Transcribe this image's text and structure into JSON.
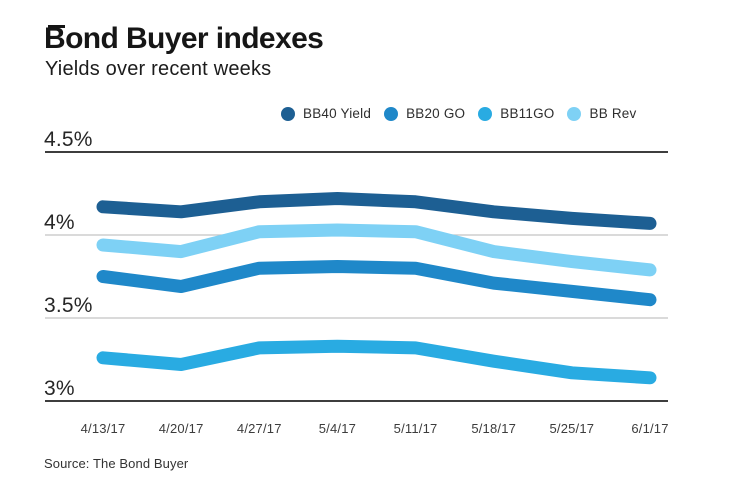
{
  "header": {
    "title": "Bond Buyer indexes",
    "subtitle": "Yields over recent weeks"
  },
  "source_note": "Source: The Bond Buyer",
  "colors": {
    "bb40_yield": "#1d5f93",
    "bb20_go": "#1f88c9",
    "bb11_go": "#29abe2",
    "bb_rev": "#7ed1f5",
    "gridline_light": "#c4c4c4",
    "gridline_dark": "#3e3e3e"
  },
  "chart_data": {
    "type": "line",
    "title": "Bond Buyer indexes",
    "subtitle": "Yields over recent weeks",
    "unit": "%",
    "grid": "horizontal",
    "legend_position": "top",
    "ylim": [
      3.0,
      4.5
    ],
    "x": [
      "4/13/17",
      "4/20/17",
      "4/27/17",
      "5/4/17",
      "5/11/17",
      "5/18/17",
      "5/25/17",
      "6/1/17"
    ],
    "yticks": [
      {
        "value": 4.5,
        "label": "4.5%",
        "emphasis": true
      },
      {
        "value": 4.0,
        "label": "4%",
        "emphasis": false
      },
      {
        "value": 3.5,
        "label": "3.5%",
        "emphasis": false
      },
      {
        "value": 3.0,
        "label": "3%",
        "emphasis": true
      }
    ],
    "series": [
      {
        "name": "BB40 Yield",
        "color": "#1d5f93",
        "values": [
          4.17,
          4.14,
          4.2,
          4.22,
          4.2,
          4.14,
          4.1,
          4.07
        ]
      },
      {
        "name": "BB20 GO",
        "color": "#1f88c9",
        "values": [
          3.75,
          3.69,
          3.8,
          3.81,
          3.8,
          3.71,
          3.66,
          3.61
        ]
      },
      {
        "name": "BB11GO",
        "color": "#29abe2",
        "values": [
          3.26,
          3.22,
          3.32,
          3.33,
          3.32,
          3.24,
          3.17,
          3.14
        ]
      },
      {
        "name": "BB Rev",
        "color": "#7ed1f5",
        "values": [
          3.94,
          3.9,
          4.02,
          4.03,
          4.02,
          3.9,
          3.84,
          3.79
        ]
      }
    ]
  }
}
